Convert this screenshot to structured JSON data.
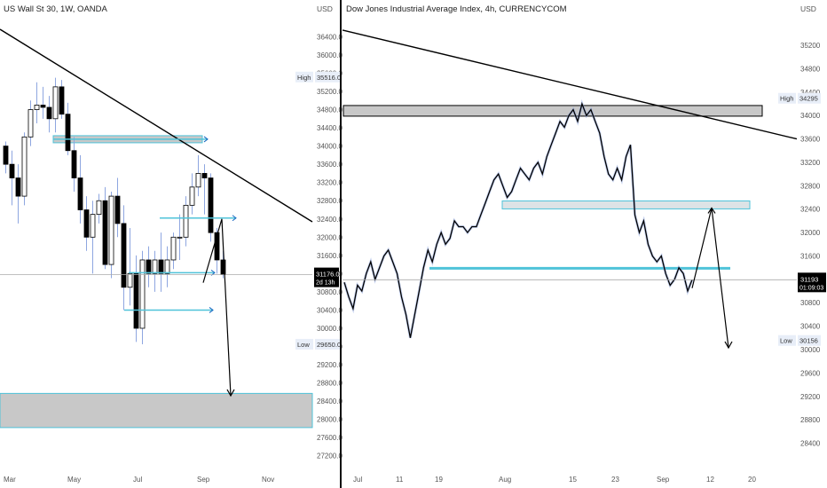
{
  "colors": {
    "up": "#ffffff",
    "down": "#000000",
    "wick": "#8ea6e0",
    "zone_fill": "#c8c8c8",
    "zone_border": "#4fc3d9",
    "arrow": "#1565c0",
    "label_bg": "#e8eef8",
    "label_text": "#333333",
    "axis_text": "#555555",
    "last_bg": "#000000",
    "divider": "#111111"
  },
  "chart_data": [
    {
      "type": "candlestick",
      "title": "US Wall St 30, 1W, OANDA",
      "currency": "USD",
      "y_ticks": [
        "36400.0",
        "36000.0",
        "35600.0",
        "35200.0",
        "34800.0",
        "34400.0",
        "34000.0",
        "33600.0",
        "33200.0",
        "32800.0",
        "32400.0",
        "32000.0",
        "31600.0",
        "31200.0",
        "30800.0",
        "30400.0",
        "30000.0",
        "29600.0",
        "29200.0",
        "28800.0",
        "28400.0",
        "28000.0",
        "27600.0",
        "27200.0"
      ],
      "y_range": [
        27000,
        36700
      ],
      "x_labels": [
        "Mar",
        "May",
        "Jul",
        "Sep",
        "Nov"
      ],
      "high_label": "High",
      "high_value": "35516.0",
      "low_label": "Low",
      "low_value": "29650.0",
      "last_value": "31176.0",
      "last_sub": "2d 13h",
      "candles": [
        [
          34000,
          34100,
          33400,
          33600
        ],
        [
          33600,
          33900,
          32700,
          33300
        ],
        [
          33300,
          33600,
          32300,
          32900
        ],
        [
          32900,
          34300,
          32700,
          34200
        ],
        [
          34200,
          35000,
          34000,
          34800
        ],
        [
          34800,
          35400,
          34500,
          34900
        ],
        [
          34900,
          35300,
          34600,
          34850
        ],
        [
          34850,
          35100,
          34300,
          34600
        ],
        [
          34600,
          35500,
          34300,
          35300
        ],
        [
          35300,
          35450,
          34600,
          34700
        ],
        [
          34700,
          34950,
          33800,
          33900
        ],
        [
          33900,
          34200,
          33000,
          33300
        ],
        [
          33300,
          33800,
          32300,
          32600
        ],
        [
          32600,
          32900,
          31700,
          32000
        ],
        [
          32000,
          32800,
          31200,
          32500
        ],
        [
          32500,
          32950,
          32300,
          32800
        ],
        [
          32800,
          33100,
          31300,
          31400
        ],
        [
          31400,
          33000,
          31100,
          32900
        ],
        [
          32900,
          33300,
          32000,
          32300
        ],
        [
          32300,
          32700,
          30400,
          30900
        ],
        [
          30900,
          32200,
          30500,
          31200
        ],
        [
          31200,
          31600,
          29700,
          30000
        ],
        [
          30000,
          31700,
          29650,
          31500
        ],
        [
          31500,
          31800,
          30900,
          31200
        ],
        [
          31200,
          31700,
          30800,
          31500
        ],
        [
          31500,
          32100,
          30800,
          31200
        ],
        [
          31200,
          31800,
          30900,
          31500
        ],
        [
          31500,
          32100,
          31300,
          32000
        ],
        [
          32000,
          32500,
          31500,
          32000
        ],
        [
          32000,
          32900,
          31800,
          32700
        ],
        [
          32700,
          33400,
          32500,
          33100
        ],
        [
          33100,
          33800,
          32900,
          33400
        ],
        [
          33400,
          33600,
          32500,
          33300
        ],
        [
          33300,
          33400,
          31900,
          32100
        ],
        [
          32100,
          32200,
          31200,
          31500
        ],
        [
          31500,
          31700,
          31100,
          31176
        ]
      ],
      "zones": [
        {
          "top": 28570,
          "bottom": 27820
        }
      ],
      "hlines": [
        34150,
        32420,
        31220,
        30400
      ]
    },
    {
      "type": "candlestick",
      "title": "Dow Jones Industrial Average Index, 4h, CURRENCYCOM",
      "currency": "USD",
      "y_ticks": [
        "35200",
        "34800",
        "34400",
        "34000",
        "33600",
        "33200",
        "32800",
        "32400",
        "32000",
        "31600",
        "31200",
        "30800",
        "30400",
        "30000",
        "29600",
        "29200",
        "28800",
        "28400"
      ],
      "y_range": [
        28150,
        35580
      ],
      "x_labels": [
        "Jul",
        "11",
        "19",
        "Aug",
        "15",
        "23",
        "Sep",
        "12",
        "20"
      ],
      "high_label": "High",
      "high_value": "34295",
      "low_label": "Low",
      "low_value": "30156",
      "last_value": "31193",
      "last_sub": "01:09:03",
      "series_points": [
        [
          0,
          31150
        ],
        [
          5,
          30900
        ],
        [
          10,
          30700
        ],
        [
          15,
          31100
        ],
        [
          20,
          31000
        ],
        [
          25,
          31300
        ],
        [
          30,
          31500
        ],
        [
          35,
          31200
        ],
        [
          40,
          31400
        ],
        [
          45,
          31600
        ],
        [
          50,
          31700
        ],
        [
          55,
          31500
        ],
        [
          60,
          31300
        ],
        [
          65,
          30900
        ],
        [
          70,
          30600
        ],
        [
          75,
          30200
        ],
        [
          80,
          30600
        ],
        [
          85,
          31000
        ],
        [
          90,
          31400
        ],
        [
          95,
          31700
        ],
        [
          100,
          31500
        ],
        [
          105,
          31800
        ],
        [
          110,
          32000
        ],
        [
          115,
          31800
        ],
        [
          120,
          31900
        ],
        [
          125,
          32200
        ],
        [
          130,
          32100
        ],
        [
          135,
          32100
        ],
        [
          140,
          32000
        ],
        [
          145,
          32100
        ],
        [
          150,
          32100
        ],
        [
          155,
          32300
        ],
        [
          160,
          32500
        ],
        [
          165,
          32700
        ],
        [
          170,
          32900
        ],
        [
          175,
          33000
        ],
        [
          180,
          32800
        ],
        [
          185,
          32600
        ],
        [
          190,
          32700
        ],
        [
          195,
          32900
        ],
        [
          200,
          33100
        ],
        [
          205,
          33000
        ],
        [
          210,
          32900
        ],
        [
          215,
          33100
        ],
        [
          220,
          33200
        ],
        [
          225,
          33000
        ],
        [
          230,
          33300
        ],
        [
          235,
          33500
        ],
        [
          240,
          33700
        ],
        [
          245,
          33900
        ],
        [
          250,
          33800
        ],
        [
          255,
          34000
        ],
        [
          260,
          34100
        ],
        [
          265,
          33900
        ],
        [
          270,
          34200
        ],
        [
          275,
          34000
        ],
        [
          280,
          34100
        ],
        [
          285,
          33900
        ],
        [
          290,
          33700
        ],
        [
          295,
          33300
        ],
        [
          300,
          33000
        ],
        [
          305,
          32900
        ],
        [
          310,
          33100
        ],
        [
          315,
          32900
        ],
        [
          320,
          33300
        ],
        [
          325,
          33500
        ],
        [
          330,
          32300
        ],
        [
          335,
          32000
        ],
        [
          340,
          32200
        ],
        [
          345,
          31800
        ],
        [
          350,
          31600
        ],
        [
          355,
          31500
        ],
        [
          360,
          31600
        ],
        [
          365,
          31300
        ],
        [
          370,
          31100
        ],
        [
          375,
          31200
        ],
        [
          380,
          31400
        ],
        [
          385,
          31300
        ],
        [
          390,
          31000
        ],
        [
          395,
          31193
        ]
      ],
      "zones": [
        {
          "top": 34080,
          "bottom": 33980
        },
        {
          "top": 32480,
          "bottom": 32420
        }
      ],
      "hlines": [
        31390
      ],
      "trendline_start": 35460,
      "trendline_end": 33600
    }
  ]
}
